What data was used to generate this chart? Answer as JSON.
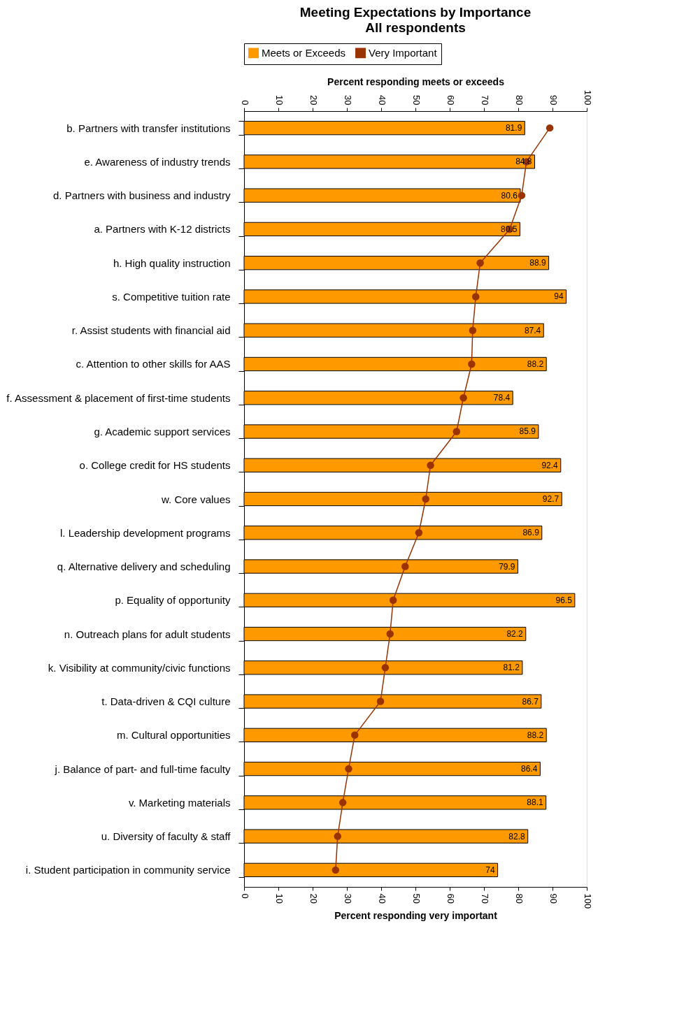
{
  "chart_data": {
    "type": "bar",
    "orientation": "horizontal",
    "title": "Meeting Expectations by Importance",
    "subtitle": "All respondents",
    "xlabel": "Percent responding very important",
    "x2label": "Percent responding meets or exceeds",
    "categories": [
      "b. Partners with transfer institutions",
      "e. Awareness of industry trends",
      "d. Partners with business and industry",
      "a. Partners with K-12 districts",
      "h. High quality instruction",
      "s. Competitive tuition rate",
      "r. Assist students with financial aid",
      "c. Attention to other skills for AAS",
      "f. Assessment & placement of first-time students",
      "g. Academic support services",
      "o. College credit for HS students",
      "w. Core values",
      "l. Leadership development programs",
      "q. Alternative delivery and scheduling",
      "p. Equality of opportunity",
      "n. Outreach plans for adult students",
      "k. Visibility at community/civic functions",
      "t. Data-driven & CQI culture",
      "m. Cultural opportunities",
      "j. Balance of part- and full-time faculty",
      "v. Marketing materials",
      "u. Diversity of faculty & staff",
      "i. Student participation in community service"
    ],
    "series": [
      {
        "name": "Meets or Exceeds",
        "axis": "x2",
        "color": "#ff9900",
        "values": [
          81.9,
          84.8,
          80.6,
          80.5,
          88.9,
          94,
          87.4,
          88.2,
          78.4,
          85.9,
          92.4,
          92.7,
          86.9,
          79.9,
          96.5,
          82.2,
          81.2,
          86.7,
          88.2,
          86.4,
          88.1,
          82.8,
          74
        ],
        "value_labels": [
          "81.9",
          "84.8",
          "80.6",
          "80.5",
          "88.9",
          "94",
          "87.4",
          "88.2",
          "78.4",
          "85.9",
          "92.4",
          "92.7",
          "86.9",
          "79.9",
          "96.5",
          "82.2",
          "81.2",
          "86.7",
          "88.2",
          "86.4",
          "88.1",
          "82.8",
          "74"
        ]
      },
      {
        "name": "Very Important",
        "type": "line",
        "color": "#993300",
        "marker": "circle",
        "values": [
          89.2,
          82.4,
          81.0,
          77.5,
          68.9,
          67.6,
          66.7,
          66.4,
          64.0,
          62.0,
          54.4,
          53.0,
          51.0,
          47.0,
          43.5,
          42.6,
          41.2,
          39.8,
          32.3,
          30.5,
          28.8,
          27.3,
          26.7
        ]
      }
    ],
    "xlim": [
      0,
      100
    ],
    "xticks": [
      0,
      10,
      20,
      30,
      40,
      50,
      60,
      70,
      80,
      90,
      100
    ],
    "x2lim": [
      0,
      100
    ],
    "x2ticks": [
      0,
      10,
      20,
      30,
      40,
      50,
      60,
      70,
      80,
      90,
      100
    ],
    "grid": false,
    "legend": "top"
  }
}
